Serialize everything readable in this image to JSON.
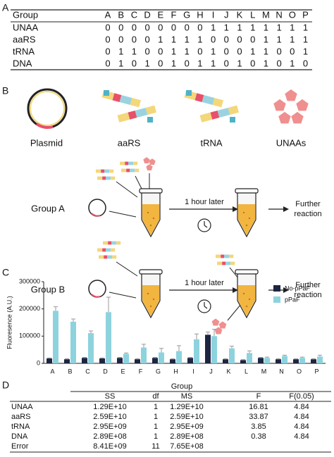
{
  "panel_labels": [
    "A",
    "B",
    "C",
    "D"
  ],
  "table_a": {
    "header": [
      "Group",
      "A",
      "B",
      "C",
      "D",
      "E",
      "F",
      "G",
      "H",
      "I",
      "J",
      "K",
      "L",
      "M",
      "N",
      "O",
      "P"
    ],
    "rows": [
      [
        "UNAA",
        0,
        0,
        0,
        0,
        0,
        0,
        0,
        0,
        1,
        1,
        1,
        1,
        1,
        1,
        1,
        1
      ],
      [
        "aaRS",
        0,
        0,
        0,
        0,
        1,
        1,
        1,
        1,
        0,
        0,
        0,
        0,
        1,
        1,
        1,
        1
      ],
      [
        "tRNA",
        0,
        1,
        1,
        0,
        0,
        1,
        1,
        0,
        1,
        0,
        0,
        1,
        1,
        0,
        0,
        1
      ],
      [
        "DNA",
        0,
        1,
        0,
        1,
        0,
        1,
        0,
        1,
        1,
        0,
        1,
        0,
        1,
        0,
        1,
        0
      ]
    ]
  },
  "diagram": {
    "components": [
      "Plasmid",
      "aaRS",
      "tRNA",
      "UNAAs"
    ],
    "groups": [
      {
        "label": "Group A",
        "arrow_label": "1 hour later",
        "result": [
          "Further",
          "reaction"
        ]
      },
      {
        "label": "Group B",
        "arrow_label": "1 hour later",
        "result": [
          "Further",
          "reaction"
        ]
      }
    ]
  },
  "chart_data": {
    "type": "bar",
    "y_label": "Fluoresence (A.U.)",
    "categories": [
      "A",
      "B",
      "C",
      "D",
      "E",
      "F",
      "G",
      "H",
      "I",
      "J",
      "K",
      "L",
      "M",
      "N",
      "O",
      "P"
    ],
    "series": [
      {
        "name": "No-pPaF",
        "color": "#1c2541",
        "values": [
          18000,
          15000,
          20000,
          18000,
          20000,
          15000,
          20000,
          15000,
          20000,
          105000,
          15000,
          12000,
          20000,
          15000,
          15000,
          15000
        ],
        "errors": [
          2000,
          2000,
          2000,
          2000,
          2000,
          2000,
          2000,
          2000,
          2000,
          10000,
          2000,
          2000,
          2000,
          2000,
          2000,
          2000
        ]
      },
      {
        "name": "pPaF",
        "color": "#8dd3de",
        "values": [
          193000,
          153000,
          111000,
          188000,
          35000,
          58000,
          40000,
          45000,
          88000,
          100000,
          55000,
          38000,
          20000,
          27000,
          20000,
          25000
        ],
        "errors": [
          15000,
          10000,
          8000,
          55000,
          3000,
          12000,
          15000,
          20000,
          20000,
          25000,
          8000,
          8000,
          3000,
          3000,
          3000,
          5000
        ]
      }
    ],
    "ylim": [
      0,
      300000
    ],
    "yticks": [
      0,
      100000,
      200000,
      300000
    ],
    "legend": "top-right"
  },
  "table_d": {
    "title": "Group",
    "header": [
      "SS",
      "df",
      "MS",
      "F",
      "F(0.05)"
    ],
    "rows": [
      [
        "UNAA",
        "1.29E+10",
        "1",
        "1.29E+10",
        "16.81",
        "4.84"
      ],
      [
        "aaRS",
        "2.59E+10",
        "1",
        "2.59E+10",
        "33.87",
        "4.84"
      ],
      [
        "tRNA",
        "2.95E+09",
        "1",
        "2.95E+09",
        "3.85",
        "4.84"
      ],
      [
        "DNA",
        "2.89E+08",
        "1",
        "2.89E+08",
        "0.38",
        "4.84"
      ],
      [
        "Error",
        "8.41E+09",
        "11",
        "7.65E+08"
      ]
    ]
  }
}
